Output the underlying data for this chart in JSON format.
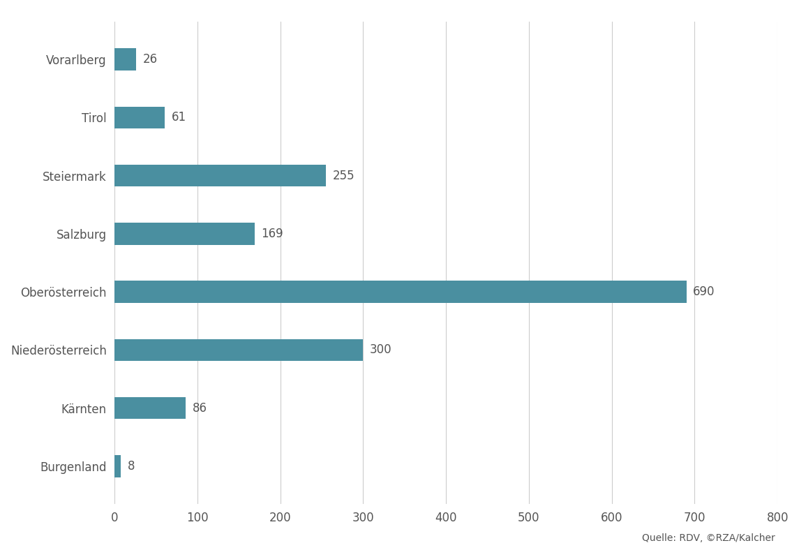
{
  "categories": [
    "Vorarlberg",
    "Tirol",
    "Steiermark",
    "Salzburg",
    "Oberösterreich",
    "Niederösterreich",
    "Kärnten",
    "Burgenland"
  ],
  "values": [
    26,
    61,
    255,
    169,
    690,
    300,
    86,
    8
  ],
  "bar_color": "#4a8fa0",
  "xlim": [
    0,
    800
  ],
  "xticks": [
    0,
    100,
    200,
    300,
    400,
    500,
    600,
    700,
    800
  ],
  "background_color": "#ffffff",
  "grid_color": "#cccccc",
  "label_color": "#555555",
  "value_label_color": "#555555",
  "source_text": "Quelle: RDV, ©RZA/Kalcher",
  "source_fontsize": 10,
  "tick_fontsize": 12,
  "label_fontsize": 12,
  "value_fontsize": 12,
  "bar_height": 0.38
}
